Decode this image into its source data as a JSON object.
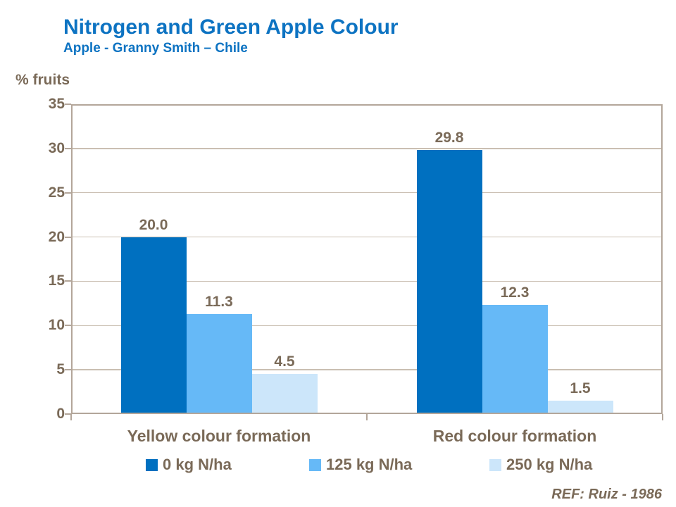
{
  "header": {
    "title": "Nitrogen and Green Apple Colour",
    "subtitle": "Apple - Granny Smith – Chile"
  },
  "axis_unit_label": "% fruits",
  "footer": {
    "ref": "REF: Ruiz - 1986"
  },
  "colors": {
    "title_blue": "#0d73c2",
    "text_brown": "#7a6a58",
    "axis_line": "#b3a69a",
    "gridline": "#cabfb2",
    "background": "#ffffff"
  },
  "chart_data": {
    "type": "bar",
    "title": "Nitrogen and Green Apple Colour",
    "subtitle": "Apple - Granny Smith – Chile",
    "xlabel": "",
    "ylabel": "% fruits",
    "ylim": [
      0,
      35
    ],
    "ytick_step": 5,
    "grid": true,
    "legend_position": "bottom",
    "categories": [
      "Yellow colour formation",
      "Red colour formation"
    ],
    "series": [
      {
        "name": "0 kg N/ha",
        "color": "#0070c0",
        "values": [
          20.0,
          29.8
        ]
      },
      {
        "name": "125 kg N/ha",
        "color": "#66b9f7",
        "values": [
          11.3,
          12.3
        ]
      },
      {
        "name": "250 kg N/ha",
        "color": "#cce6fa",
        "values": [
          4.5,
          1.5
        ]
      }
    ],
    "data_label_format": "one_decimal",
    "annotation": "REF: Ruiz - 1986"
  }
}
